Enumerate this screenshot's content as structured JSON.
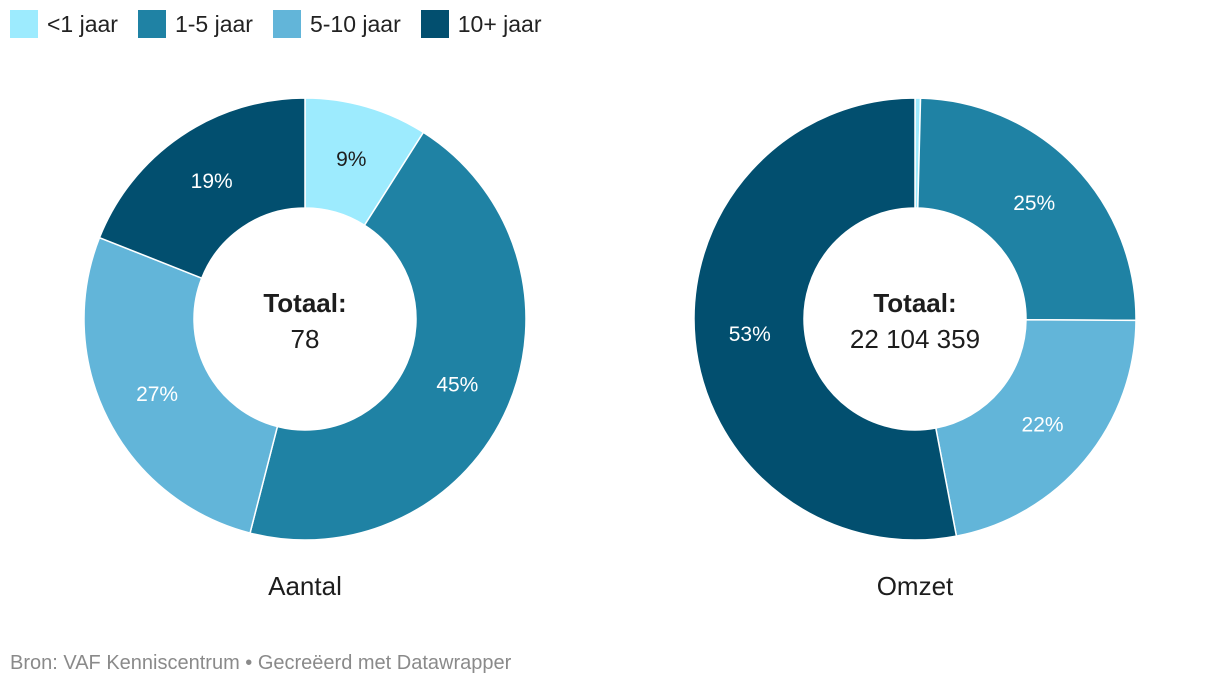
{
  "legend": {
    "items": [
      {
        "label": "<1 jaar",
        "color": "#9debfe"
      },
      {
        "label": "1-5 jaar",
        "color": "#1f82a4"
      },
      {
        "label": "5-10 jaar",
        "color": "#62b5d9"
      },
      {
        "label": "10+ jaar",
        "color": "#024f6f"
      }
    ]
  },
  "chart_data": [
    {
      "type": "pie",
      "variant": "donut",
      "title": "Aantal",
      "center": {
        "title": "Totaal:",
        "value": "78"
      },
      "categories": [
        "<1 jaar",
        "1-5 jaar",
        "5-10 jaar",
        "10+ jaar"
      ],
      "values": [
        9,
        45,
        27,
        19
      ],
      "labels": [
        "9%",
        "45%",
        "27%",
        "19%"
      ],
      "colors": [
        "#9debfe",
        "#1f82a4",
        "#62b5d9",
        "#024f6f"
      ],
      "label_colors": [
        "#1d1d1d",
        "#ffffff",
        "#ffffff",
        "#ffffff"
      ]
    },
    {
      "type": "pie",
      "variant": "donut",
      "title": "Omzet",
      "center": {
        "title": "Totaal:",
        "value": "22 104 359"
      },
      "categories": [
        "<1 jaar",
        "1-5 jaar",
        "5-10 jaar",
        "10+ jaar"
      ],
      "values": [
        0.4,
        24.7,
        21.9,
        53
      ],
      "labels": [
        "",
        "25%",
        "22%",
        "53%"
      ],
      "colors": [
        "#9debfe",
        "#1f82a4",
        "#62b5d9",
        "#024f6f"
      ],
      "label_colors": [
        "#1d1d1d",
        "#ffffff",
        "#ffffff",
        "#ffffff"
      ]
    }
  ],
  "footer": {
    "text": "Bron: VAF Kenniscentrum • Gecreëerd met Datawrapper"
  }
}
